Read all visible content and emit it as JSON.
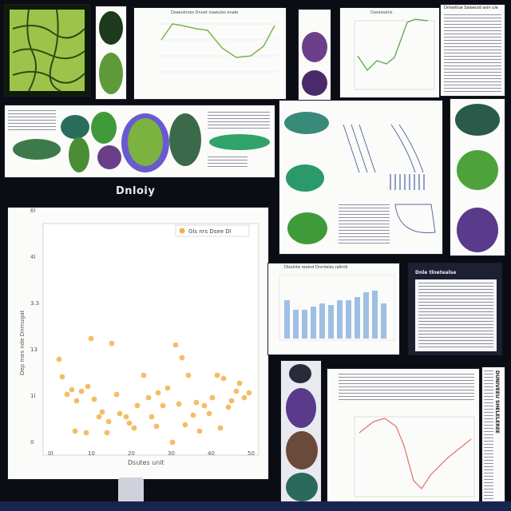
{
  "collage": {
    "center_label": "Dnloiy"
  },
  "scatter": {
    "legend": "Gls nrs Dsee Dl",
    "xlabel": "Dsutes unit",
    "ylabel": "Dep mes nde Dnmugat",
    "yticks": [
      "0",
      "1l",
      "13",
      "3.3",
      "4l",
      "6l"
    ],
    "xticks": [
      "0l",
      "10",
      "20",
      "30",
      "40",
      "50"
    ],
    "point_color": "#f2b24a"
  },
  "line_top": {
    "title": "Dsaeulnnes Dnvet vsaeulss enale",
    "color": "#7ab648"
  },
  "line_right": {
    "title": "Daseleaitis",
    "color": "#5aa64a"
  },
  "bars": {
    "title": "Dlsslnte reolnd Dnmlelss raltnlk",
    "color": "#9ebfe4"
  },
  "line_bottom": {
    "color": "#e07a70"
  },
  "doc_right": {
    "heading": "Dnlsetlue Salaeuld asin ule"
  },
  "doc_bottom": {
    "heading": "Dnle tlnetealse"
  },
  "vertical_doc": {
    "heading": "DUNIVEEU SHELELEREE"
  }
}
